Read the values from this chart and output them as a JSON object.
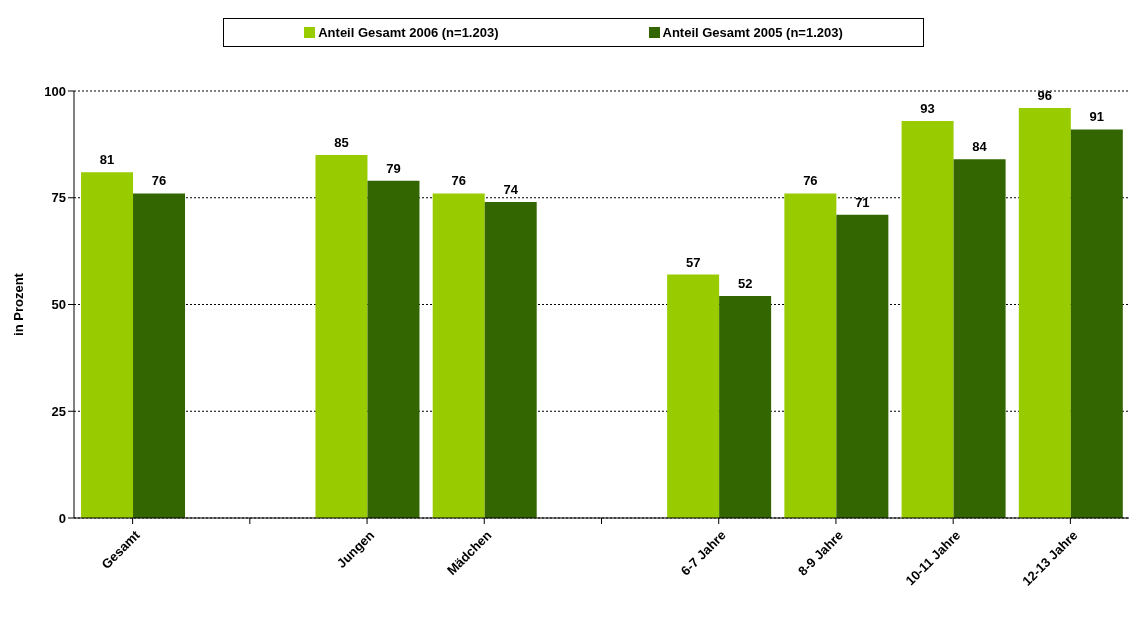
{
  "chart_data": {
    "type": "bar",
    "ylabel": "in Prozent",
    "categories": [
      "Gesamt",
      null,
      "Jungen",
      "Mädchen",
      null,
      "6-7 Jahre",
      "8-9 Jahre",
      "10-11 Jahre",
      "12-13 Jahre"
    ],
    "series": [
      {
        "name": "Anteil Gesamt 2006 (n=1.203)",
        "color": "#99cc00",
        "values": [
          81,
          null,
          85,
          76,
          null,
          57,
          76,
          93,
          96
        ]
      },
      {
        "name": "Anteil Gesamt 2005 (n=1.203)",
        "color": "#336600",
        "values": [
          76,
          null,
          79,
          74,
          null,
          52,
          71,
          84,
          91
        ]
      }
    ],
    "ylim": [
      0,
      100
    ],
    "yticks": [
      0,
      25,
      50,
      75,
      100
    ],
    "grid": "y",
    "legend": "top",
    "data_labels": true
  }
}
